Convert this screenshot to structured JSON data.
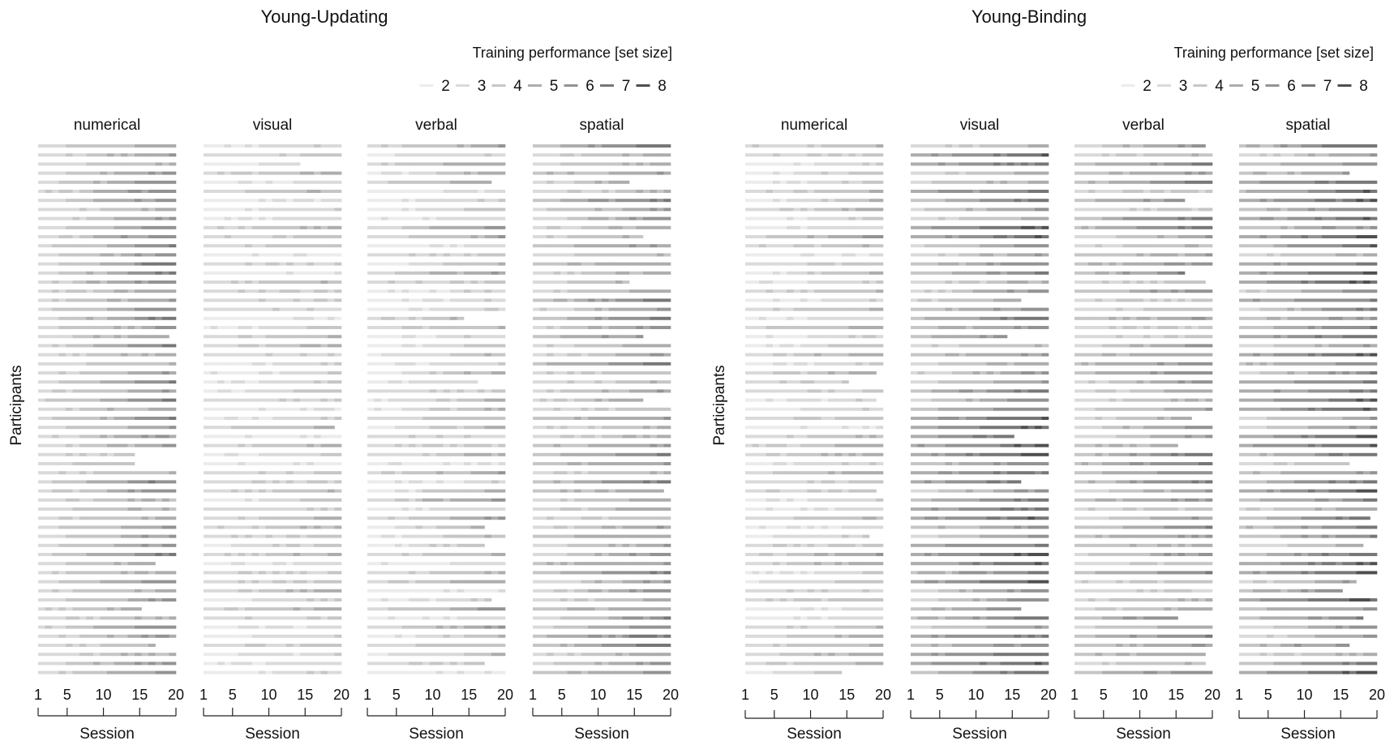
{
  "chart_data": [
    {
      "type": "heatmap",
      "title": "Young-Updating",
      "legend": {
        "title": "Training performance [set size]",
        "levels": [
          2,
          3,
          4,
          5,
          6,
          7,
          8
        ],
        "labels": [
          "2",
          "3",
          "4",
          "5",
          "6",
          "7",
          "8"
        ],
        "position": "top-right",
        "colors": [
          "#ececec",
          "#dadada",
          "#c6c6c6",
          "#adadad",
          "#939393",
          "#777777",
          "#4f4f4f"
        ]
      },
      "ylabel": "Participants",
      "xlabel": "Session",
      "x_ticks": [
        1,
        5,
        10,
        15,
        20
      ],
      "x_tick_labels": [
        "1",
        "5",
        "10",
        "15",
        "20"
      ],
      "x_range": [
        1,
        20
      ],
      "participants": 59,
      "panels": [
        {
          "name": "numerical",
          "start_level": [
            3,
            2
          ],
          "gain": [
            1.5,
            4.0
          ]
        },
        {
          "name": "visual",
          "start_level": [
            2,
            3
          ],
          "gain": [
            0.3,
            2.2
          ]
        },
        {
          "name": "verbal",
          "start_level": [
            2,
            3
          ],
          "gain": [
            0.6,
            3.2
          ]
        },
        {
          "name": "spatial",
          "start_level": [
            3,
            4
          ],
          "gain": [
            1.2,
            3.4
          ]
        }
      ]
    },
    {
      "type": "heatmap",
      "title": "Young-Binding",
      "legend": {
        "title": "Training performance [set size]",
        "levels": [
          2,
          3,
          4,
          5,
          6,
          7,
          8
        ],
        "labels": [
          "2",
          "3",
          "4",
          "5",
          "6",
          "7",
          "8"
        ],
        "position": "top-right",
        "colors": [
          "#ececec",
          "#dadada",
          "#c6c6c6",
          "#adadad",
          "#939393",
          "#777777",
          "#4f4f4f"
        ]
      },
      "ylabel": "Participants",
      "xlabel": "Session",
      "x_ticks": [
        1,
        5,
        10,
        15,
        20
      ],
      "x_tick_labels": [
        "1",
        "5",
        "10",
        "15",
        "20"
      ],
      "x_range": [
        1,
        20
      ],
      "participants": 59,
      "panels": [
        {
          "name": "numerical",
          "start_level": [
            2,
            3
          ],
          "gain": [
            0.6,
            2.8
          ]
        },
        {
          "name": "visual",
          "start_level": [
            3,
            5
          ],
          "gain": [
            1.5,
            3.5
          ]
        },
        {
          "name": "verbal",
          "start_level": [
            3,
            4
          ],
          "gain": [
            0.8,
            3.2
          ]
        },
        {
          "name": "spatial",
          "start_level": [
            3,
            5
          ],
          "gain": [
            1.5,
            3.5
          ]
        }
      ]
    }
  ]
}
